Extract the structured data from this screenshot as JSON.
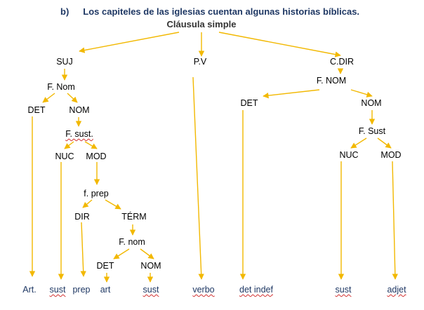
{
  "title": {
    "marker": "b)",
    "sentence": "Los capiteles de las iglesias cuentan algunas historias bíblicas."
  },
  "root": "Cláusula simple",
  "colors": {
    "arrow": "#f2b800",
    "title": "#1f3864"
  },
  "nodes": {
    "suj": "SUJ",
    "pv": "P.V",
    "cdir": "C.DIR",
    "f_nom": "F. Nom",
    "det_1": "DET",
    "nom_1": "NOM",
    "f_sust": "F. sust.",
    "nuc_1": "NUC",
    "mod_1": "MOD",
    "f_prep": "f. prep",
    "dir": "DIR",
    "term": "TÉRM",
    "f_nom_2": "F. nom",
    "det_2": "DET",
    "nom_2": "NOM",
    "f_nom_cdir": "F. NOM",
    "det_3": "DET",
    "nom_3": "NOM",
    "f_sust_2": "F. Sust",
    "nuc_2": "NUC",
    "mod_2": "MOD"
  },
  "leaves": {
    "art_1": "Art.",
    "sust_1": "sust",
    "prep": "prep",
    "art_2": "art",
    "sust_2": "sust",
    "verbo": "verbo",
    "det_indef": "det indef",
    "sust_3": "sust",
    "adjet": "adjet"
  }
}
